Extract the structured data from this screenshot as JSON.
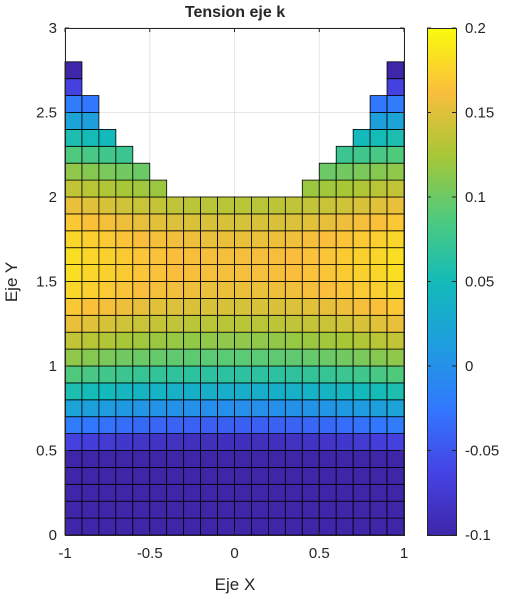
{
  "chart_data": {
    "type": "heatmap",
    "title": "Tension eje k",
    "xlabel": "Eje X",
    "ylabel": "Eje Y",
    "xlim": [
      -1,
      1
    ],
    "ylim": [
      0,
      3
    ],
    "xticks": [
      -1,
      -0.5,
      0,
      0.5,
      1
    ],
    "xtick_labels": [
      "-1",
      "-0.5",
      "0",
      "0.5",
      "1"
    ],
    "yticks": [
      0,
      0.5,
      1,
      1.5,
      2,
      2.5,
      3
    ],
    "ytick_labels": [
      "0",
      "0.5",
      "1",
      "1.5",
      "2",
      "2.5",
      "3"
    ],
    "grid": true,
    "colormap": "parula",
    "clim": [
      -0.1,
      0.2
    ],
    "colorbar_ticks": [
      -0.1,
      -0.05,
      0,
      0.05,
      0.1,
      0.15,
      0.2
    ],
    "colorbar_tick_labels": [
      "-0.1",
      "-0.05",
      "0",
      "0.05",
      "0.1",
      "0.15",
      "0.2"
    ],
    "cell_size": 0.1,
    "column_x_centers": [
      -0.95,
      -0.85,
      -0.75,
      -0.65,
      -0.55,
      -0.45,
      -0.35,
      -0.25,
      -0.15,
      -0.05,
      0.05,
      0.15,
      0.25,
      0.35,
      0.45,
      0.55,
      0.65,
      0.75,
      0.85,
      0.95
    ],
    "column_top_y": [
      2.8,
      2.6,
      2.4,
      2.3,
      2.2,
      2.1,
      2.0,
      2.0,
      2.0,
      2.0,
      2.0,
      2.0,
      2.0,
      2.0,
      2.1,
      2.2,
      2.3,
      2.4,
      2.6,
      2.8
    ],
    "value_model": "value = min(0.2, 0.16 - 0.225*(y-1.6)^2 + 0.025*x^2)"
  }
}
